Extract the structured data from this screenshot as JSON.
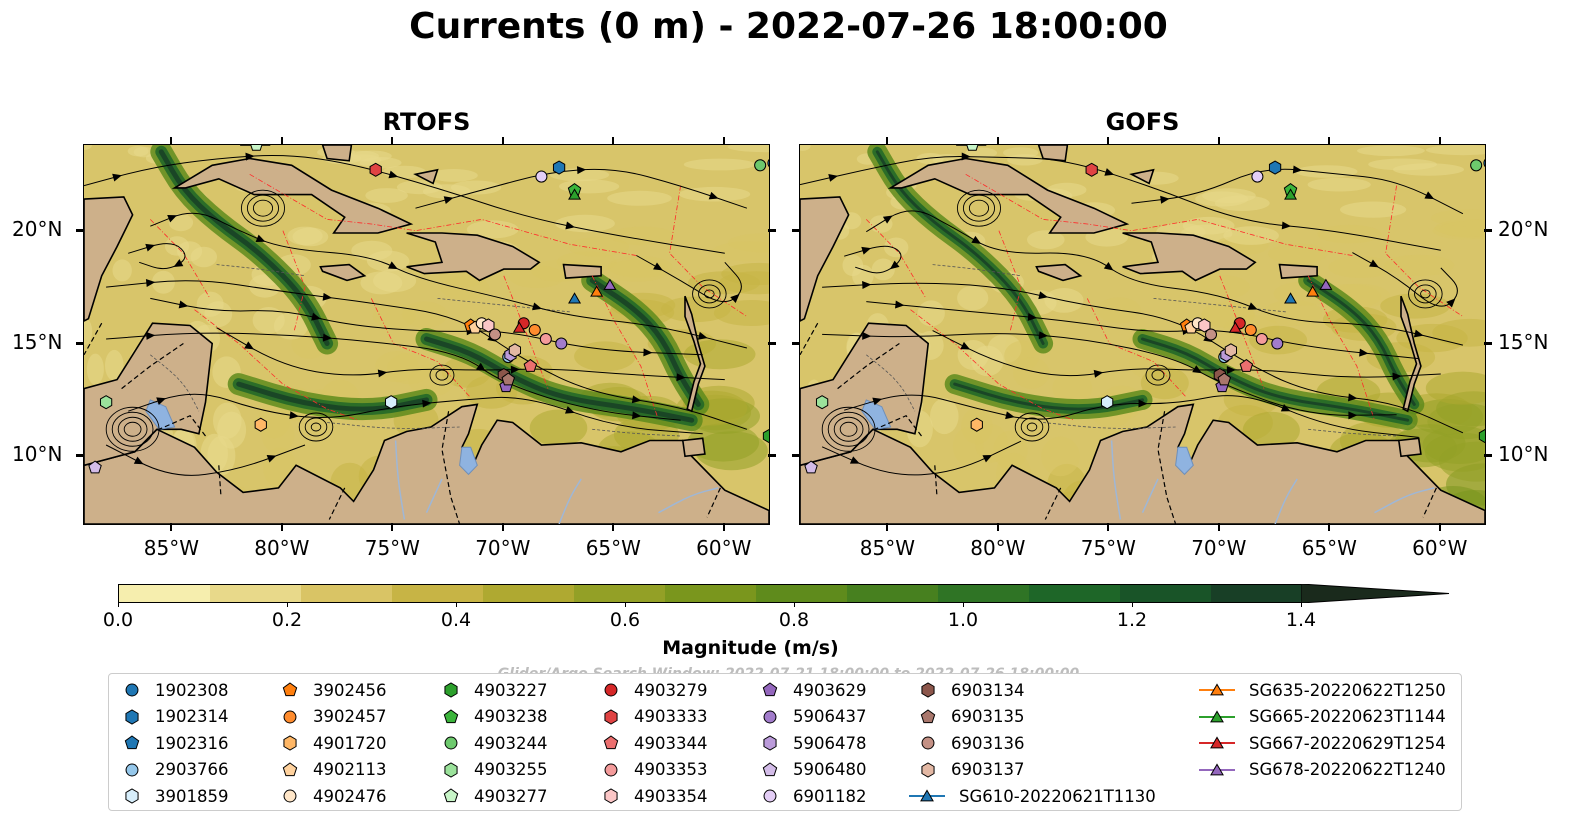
{
  "title": "Currents (0 m) - 2022-07-26 18:00:00",
  "panels": [
    {
      "title": "RTOFS",
      "variant": 0
    },
    {
      "title": "GOFS",
      "variant": 1
    }
  ],
  "lon_labels": [
    "85°W",
    "80°W",
    "75°W",
    "70°W",
    "65°W",
    "60°W"
  ],
  "lon_values": [
    -85,
    -80,
    -75,
    -70,
    -65,
    -60
  ],
  "lat_labels": [
    "20°N",
    "15°N",
    "10°N"
  ],
  "lat_values": [
    20,
    15,
    10
  ],
  "map_extent": {
    "lon": [
      -89,
      -58
    ],
    "lat": [
      7,
      23.8
    ]
  },
  "colorbar": {
    "label": "Magnitude (m/s)",
    "ticks": [
      "0.0",
      "0.2",
      "0.4",
      "0.6",
      "0.8",
      "1.0",
      "1.2",
      "1.4"
    ],
    "tick_values": [
      0.0,
      0.2,
      0.4,
      0.6,
      0.8,
      1.0,
      1.2,
      1.4
    ],
    "range": [
      0,
      1.6
    ],
    "extend": "max",
    "colors": [
      "#f6eeae",
      "#e8d98a",
      "#d9c465",
      "#c7b445",
      "#afa931",
      "#93a026",
      "#7a961d",
      "#5f8b1c",
      "#47801f",
      "#2f7425",
      "#1e6628",
      "#195428",
      "#183f26",
      "#1a2a1c"
    ]
  },
  "search_window": "Glider/Argo Search Window: 2022-07-21 18:00:00 to 2022-07-26 18:00:00",
  "colors": {
    "land": "#cdb08a",
    "lake": "#8fb3e0",
    "eez": "#ff2a2a"
  },
  "legend": [
    {
      "label": "1902308",
      "marker": "circle",
      "color": "#1f77b4",
      "lon": -57.8,
      "lat": 23.0
    },
    {
      "label": "1902314",
      "marker": "hexagon",
      "color": "#1f77b4",
      "lon": -67.5,
      "lat": 22.8
    },
    {
      "label": "1902316",
      "marker": "pentagon",
      "color": "#1f77b4",
      "lon": -57.6,
      "lat": 23.2
    },
    {
      "label": "2903766",
      "marker": "circle",
      "color": "#95c7ea",
      "lon": -69.8,
      "lat": 14.4
    },
    {
      "label": "3901859",
      "marker": "hexagon",
      "color": "#d7eefb",
      "lon": -75.1,
      "lat": 12.4
    },
    {
      "label": "3902456",
      "marker": "pentagon",
      "color": "#ff7f0e",
      "lon": -71.5,
      "lat": 15.8
    },
    {
      "label": "3902457",
      "marker": "circle",
      "color": "#ff8c2e",
      "lon": -68.6,
      "lat": 15.6
    },
    {
      "label": "4901720",
      "marker": "hexagon",
      "color": "#ffb766",
      "lon": -81.0,
      "lat": 11.4
    },
    {
      "label": "4902113",
      "marker": "pentagon",
      "color": "#ffd29e",
      "lon": -71.3,
      "lat": 15.7
    },
    {
      "label": "4902476",
      "marker": "circle",
      "color": "#ffe6c8",
      "lon": -71.0,
      "lat": 15.9
    },
    {
      "label": "4903227",
      "marker": "hexagon",
      "color": "#2ca02c",
      "lon": -58.0,
      "lat": 10.9
    },
    {
      "label": "4903238",
      "marker": "pentagon",
      "color": "#3bb43b",
      "lon": -66.8,
      "lat": 21.8
    },
    {
      "label": "4903244",
      "marker": "circle",
      "color": "#6dc96d",
      "lon": -58.4,
      "lat": 22.9
    },
    {
      "label": "4903255",
      "marker": "hexagon",
      "color": "#9be29b",
      "lon": -88.0,
      "lat": 12.4
    },
    {
      "label": "4903277",
      "marker": "pentagon",
      "color": "#c8f5c8",
      "lon": -81.2,
      "lat": 23.8
    },
    {
      "label": "4903279",
      "marker": "circle",
      "color": "#d62728",
      "lon": -69.1,
      "lat": 15.9
    },
    {
      "label": "4903333",
      "marker": "hexagon",
      "color": "#e04343",
      "lon": -75.8,
      "lat": 22.7
    },
    {
      "label": "4903344",
      "marker": "pentagon",
      "color": "#ec6f6f",
      "lon": -68.8,
      "lat": 14.0
    },
    {
      "label": "4903353",
      "marker": "circle",
      "color": "#f49b9b",
      "lon": -68.1,
      "lat": 15.2
    },
    {
      "label": "4903354",
      "marker": "hexagon",
      "color": "#fbc6c6",
      "lon": -70.7,
      "lat": 15.8
    },
    {
      "label": "4903629",
      "marker": "pentagon",
      "color": "#9467bd",
      "lon": -69.9,
      "lat": 13.1
    },
    {
      "label": "5906437",
      "marker": "circle",
      "color": "#a27ccb",
      "lon": -67.4,
      "lat": 15.0
    },
    {
      "label": "5906478",
      "marker": "hexagon",
      "color": "#bb9bda",
      "lon": -69.7,
      "lat": 14.5
    },
    {
      "label": "5906480",
      "marker": "pentagon",
      "color": "#d3bce8",
      "lon": -88.5,
      "lat": 9.5
    },
    {
      "label": "6901182",
      "marker": "circle",
      "color": "#e3cdf5",
      "lon": -68.3,
      "lat": 22.4
    },
    {
      "label": "6903134",
      "marker": "hexagon",
      "color": "#8c564b",
      "lon": -70.0,
      "lat": 13.6
    },
    {
      "label": "6903135",
      "marker": "pentagon",
      "color": "#a9776c",
      "lon": -69.8,
      "lat": 13.4
    },
    {
      "label": "6903136",
      "marker": "circle",
      "color": "#c49185",
      "lon": -70.4,
      "lat": 15.4
    },
    {
      "label": "6903137",
      "marker": "hexagon",
      "color": "#e3b8a4",
      "lon": -69.5,
      "lat": 14.7
    },
    {
      "label": "SG610-20220621T1130",
      "marker": "triangle",
      "color": "#1f77b4",
      "line": true,
      "lon": -66.8,
      "lat": 17.0
    },
    {
      "label": "SG635-20220622T1250",
      "marker": "triangle",
      "color": "#ff7f0e",
      "line": true,
      "lon": -65.8,
      "lat": 17.3
    },
    {
      "label": "SG665-20220623T1144",
      "marker": "triangle",
      "color": "#2ca02c",
      "line": true,
      "lon": -66.8,
      "lat": 21.6
    },
    {
      "label": "SG667-20220629T1254",
      "marker": "triangle",
      "color": "#d62728",
      "line": true,
      "lon": -69.3,
      "lat": 15.7
    },
    {
      "label": "SG678-20220622T1240",
      "marker": "triangle",
      "color": "#9467bd",
      "line": true,
      "lon": -65.2,
      "lat": 17.6
    }
  ]
}
